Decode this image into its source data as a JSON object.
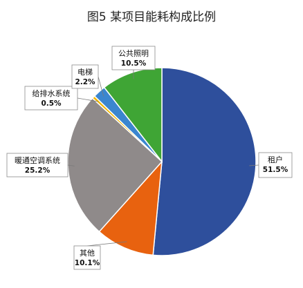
{
  "chart_data": {
    "type": "pie",
    "title": "图5  某项目能耗构成比例",
    "start_angle_deg": 0,
    "direction": "clockwise",
    "slices": [
      {
        "label": "租户",
        "value": 51.5,
        "value_label": "51.5%",
        "color": "#2e4f9c"
      },
      {
        "label": "其他",
        "value": 10.1,
        "value_label": "10.1%",
        "color": "#e8620f"
      },
      {
        "label": "暖通空调系统",
        "value": 25.2,
        "value_label": "25.2%",
        "color": "#8f8a8a"
      },
      {
        "label": "给排水系统",
        "value": 0.5,
        "value_label": "0.5%",
        "color": "#f2b600"
      },
      {
        "label": "电梯",
        "value": 2.2,
        "value_label": "2.2%",
        "color": "#3b86cf"
      },
      {
        "label": "公共照明",
        "value": 10.5,
        "value_label": "10.5%",
        "color": "#3fa535"
      }
    ]
  }
}
